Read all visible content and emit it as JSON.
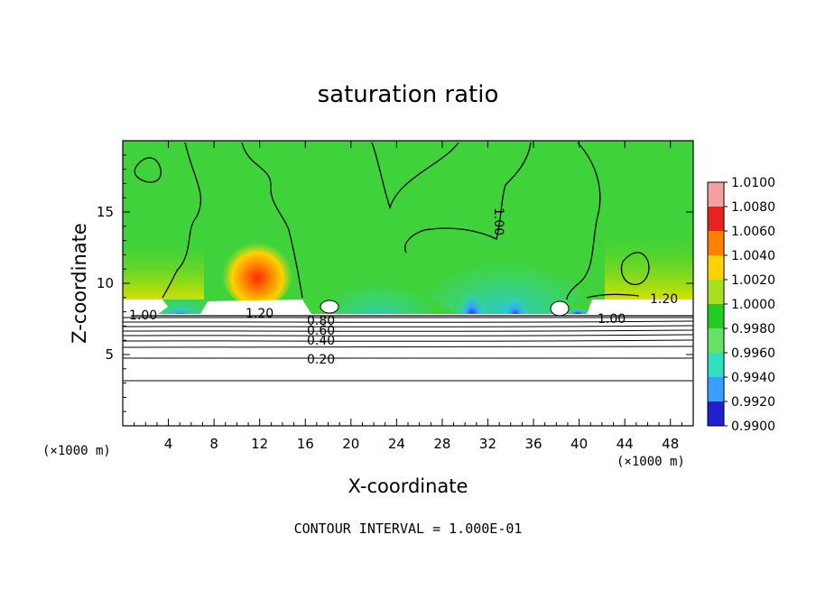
{
  "chart_data": {
    "type": "heatmap",
    "title": "saturation ratio",
    "xlabel": "X-coordinate",
    "ylabel": "Z-coordinate",
    "x_unit_left": "(×1000 m)",
    "x_unit_right": "(×1000 m)",
    "xlim": [
      0,
      50
    ],
    "ylim": [
      0,
      20
    ],
    "xticks": [
      4,
      8,
      12,
      16,
      20,
      24,
      28,
      32,
      36,
      40,
      44,
      48
    ],
    "yticks": [
      5,
      10,
      15
    ],
    "colorbar": {
      "levels": [
        "1.0100",
        "1.0080",
        "1.0060",
        "1.0040",
        "1.0020",
        "1.0000",
        "0.9980",
        "0.9960",
        "0.9940",
        "0.9920",
        "0.9900"
      ],
      "colors": [
        "#f4a0a0",
        "#e8231f",
        "#ff7f00",
        "#ffd200",
        "#a8e020",
        "#22cc22",
        "#66e066",
        "#30e0c0",
        "#3aa0ff",
        "#2020d0",
        "#7018a0"
      ]
    },
    "contour_labels": [
      "1.00",
      "1.00",
      "1.00",
      "1.20",
      "1.20",
      "0.80",
      "0.60",
      "0.40",
      "0.20"
    ],
    "footer": "CONTOUR INTERVAL = 1.000E-01"
  }
}
